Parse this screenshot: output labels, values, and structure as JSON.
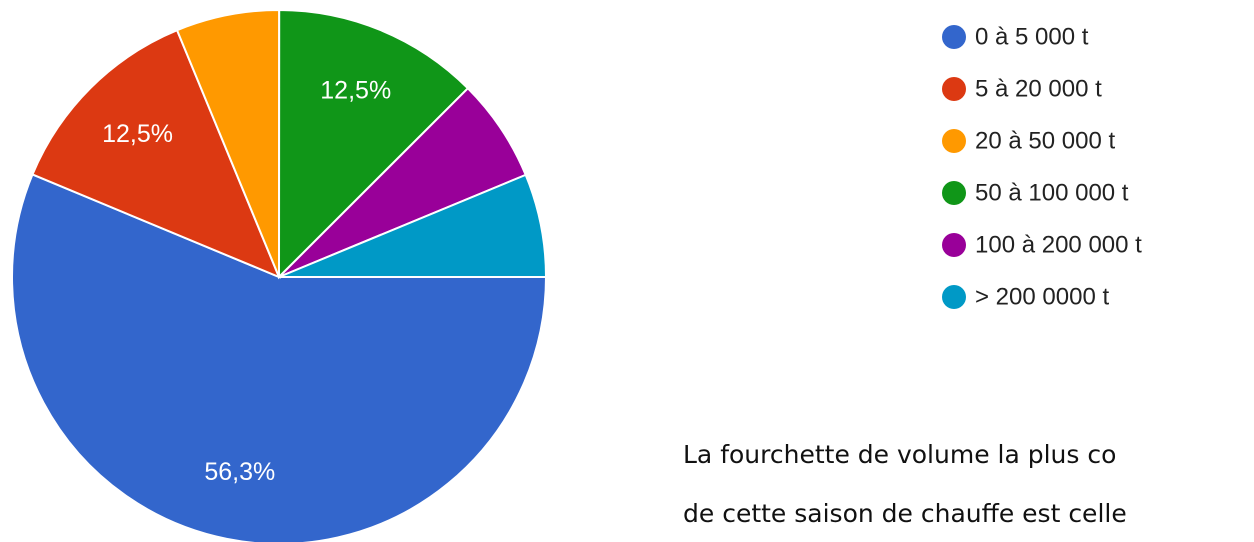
{
  "chart_data": {
    "type": "pie",
    "categories": [
      "0 à 5 000 t",
      "5 à 20 000 t",
      "20 à 50 000 t",
      "50 à 100 000 t",
      "100 à 200 000 t",
      "> 200 0000 t"
    ],
    "values": [
      56.3,
      12.5,
      6.25,
      12.5,
      6.25,
      6.25
    ],
    "value_labels": [
      "56,3%",
      "12,5%",
      null,
      "12,5%",
      null,
      null
    ],
    "colors": [
      "#3366cc",
      "#dc3912",
      "#ff9900",
      "#109618",
      "#990099",
      "#0099c6"
    ],
    "legend": "right"
  },
  "text": {
    "lines": [
      "La fourchette de volume la plus co",
      "de cette saison de chauffe est celle"
    ]
  }
}
